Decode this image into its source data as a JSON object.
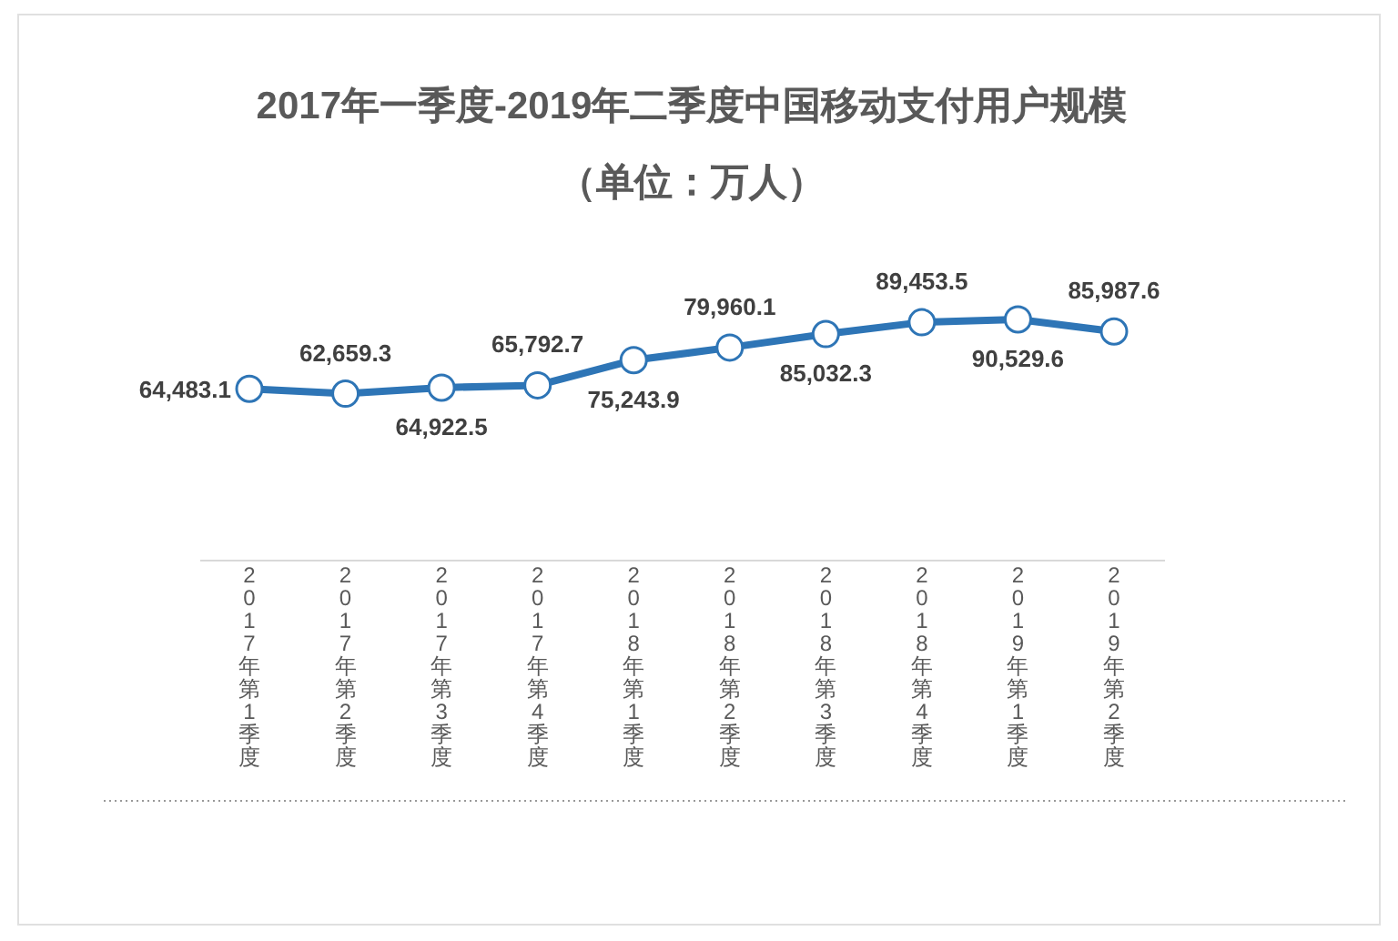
{
  "chart_data": {
    "type": "line",
    "title": "2017年一季度-2019年二季度中国移动支付用户规模（单位：万人）",
    "categories": [
      "2017年第1季度",
      "2017年第2季度",
      "2017年第3季度",
      "2017年第4季度",
      "2018年第1季度",
      "2018年第2季度",
      "2018年第3季度",
      "2018年第4季度",
      "2019年第1季度",
      "2019年第2季度"
    ],
    "series": [
      {
        "color": "#2e75b6",
        "values": [
          64483.1,
          62659.3,
          64922.5,
          65792.7,
          75243.9,
          79960.1,
          85032.3,
          89453.5,
          90529.6,
          85987.6
        ],
        "value_labels": [
          "64,483.1",
          "62,659.3",
          "64,922.5",
          "65,792.7",
          "75,243.9",
          "79,960.1",
          "85,032.3",
          "89,453.5",
          "90,529.6",
          "85,987.6"
        ]
      }
    ],
    "marker": "circle",
    "grid": false
  }
}
